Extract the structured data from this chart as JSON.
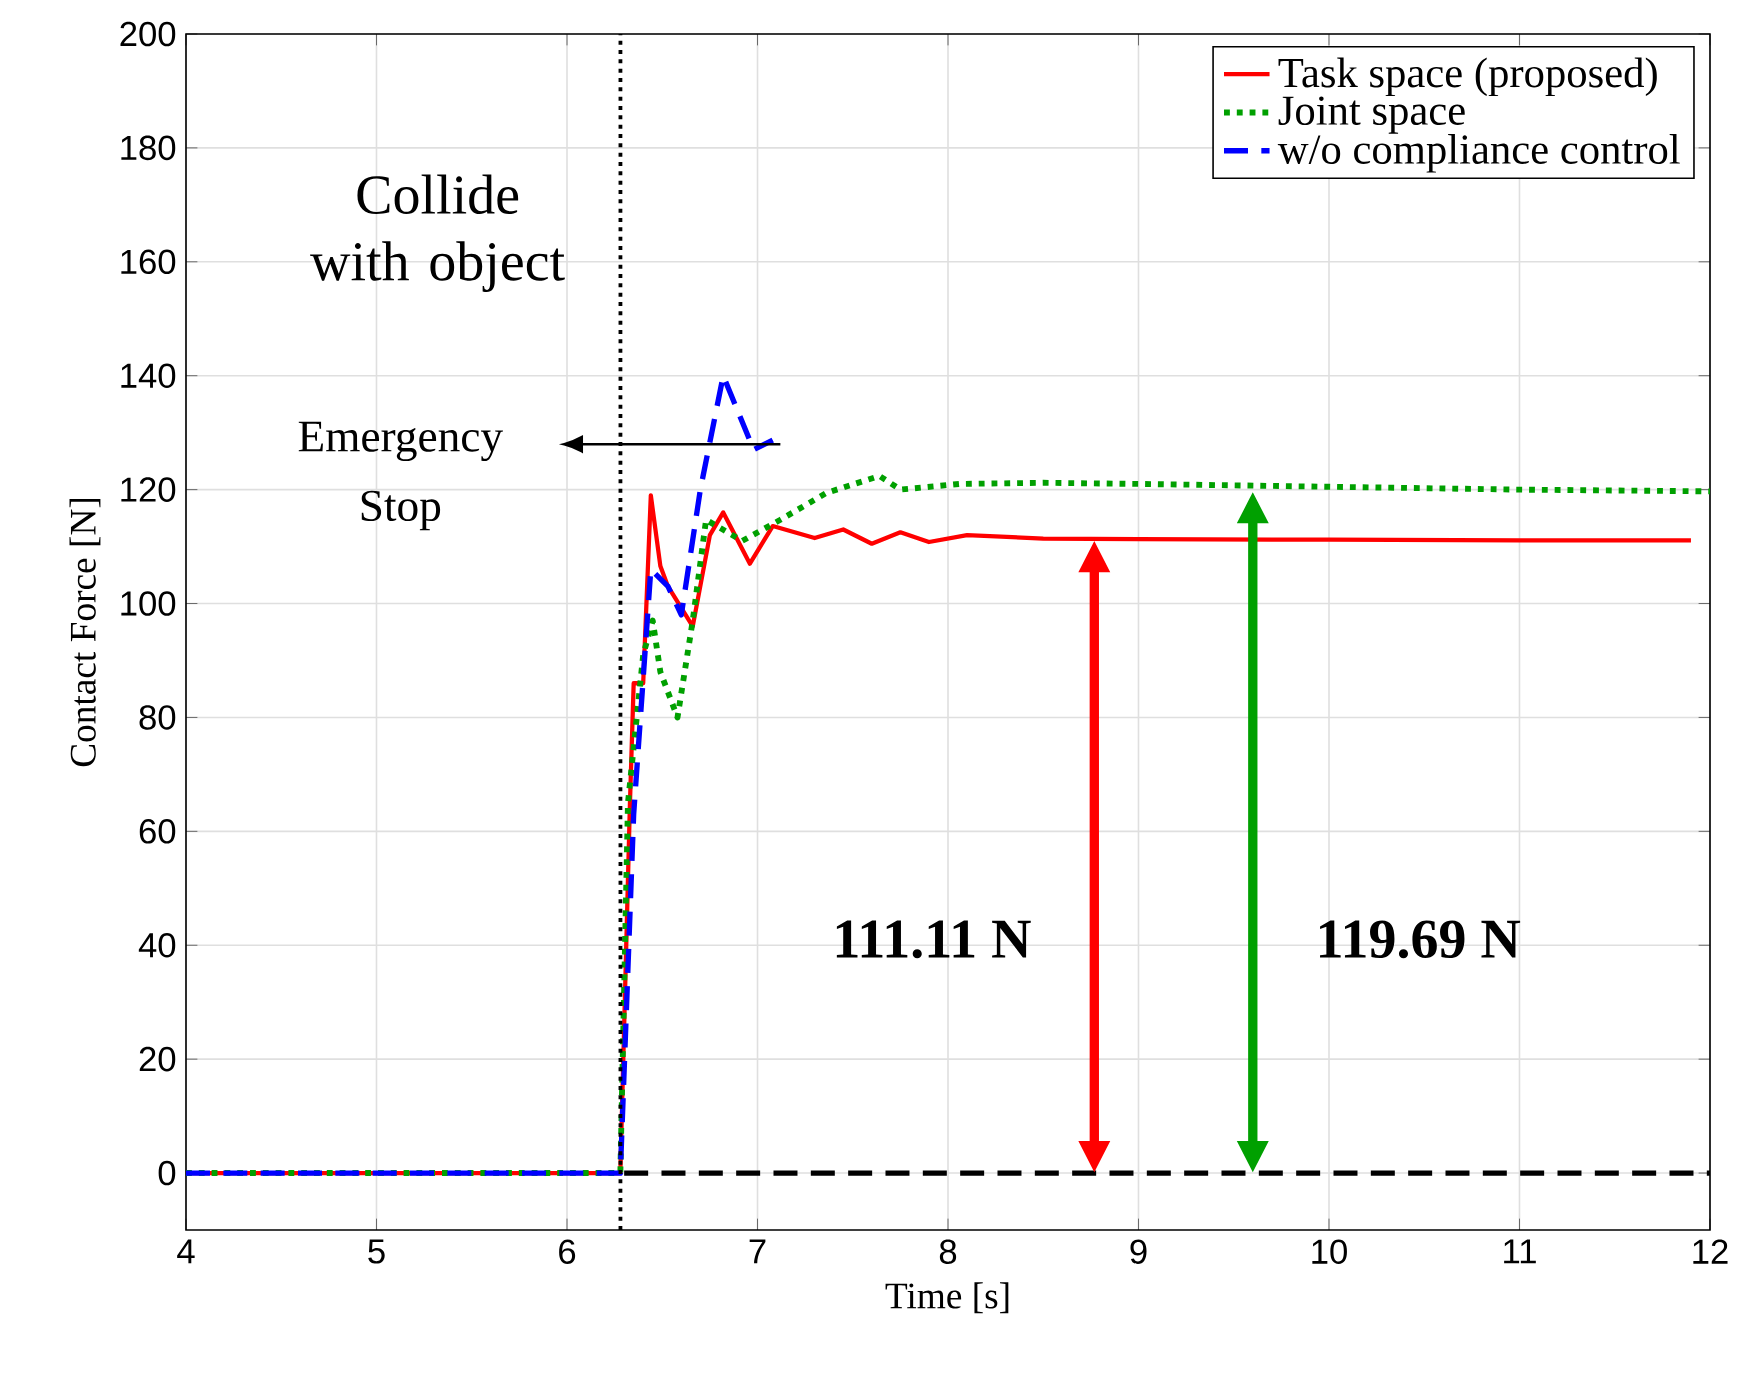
{
  "chart_data": {
    "type": "line",
    "xlabel": "Time [s]",
    "ylabel": "Contact Force [N]",
    "xlim": [
      4,
      12
    ],
    "ylim": [
      -10,
      200
    ],
    "xticks": [
      4,
      5,
      6,
      7,
      8,
      9,
      10,
      11,
      12
    ],
    "yticks": [
      0,
      20,
      40,
      60,
      80,
      100,
      120,
      140,
      160,
      180,
      200
    ],
    "grid": true,
    "legend": "top right",
    "series": [
      {
        "name": "Task space (proposed)",
        "color": "#ff0000",
        "line_style": "solid",
        "x": [
          4,
          6.28,
          6.33,
          6.35,
          6.4,
          6.44,
          6.49,
          6.53,
          6.66,
          6.75,
          6.82,
          6.96,
          7.08,
          7.3,
          7.45,
          7.6,
          7.75,
          7.9,
          8.1,
          8.5,
          9,
          10,
          11,
          11.9
        ],
        "values": [
          0,
          0,
          64.5,
          86,
          86,
          119,
          106.6,
          103,
          96,
          112,
          116,
          107,
          113.6,
          111.5,
          113,
          110.5,
          112.5,
          110.8,
          112,
          111.4,
          111.3,
          111.2,
          111.1,
          111.1
        ]
      },
      {
        "name": "Joint space",
        "color": "#00a000",
        "line_style": "dotted",
        "x": [
          4,
          6.28,
          6.32,
          6.4,
          6.45,
          6.49,
          6.58,
          6.66,
          6.73,
          6.92,
          7.12,
          7.36,
          7.64,
          7.75,
          8.06,
          8.5,
          9,
          10,
          11,
          12
        ],
        "values": [
          0,
          0,
          65,
          91,
          97,
          88,
          80,
          97,
          114.7,
          111,
          114.7,
          119.4,
          122.4,
          120,
          121,
          121.2,
          121,
          120.5,
          120,
          119.7
        ]
      },
      {
        "name": "w/o compliance control",
        "color": "#0000ff",
        "line_style": "dashed",
        "x": [
          4,
          6.28,
          6.35,
          6.44,
          6.53,
          6.6,
          6.7,
          6.82,
          6.98,
          7.08
        ],
        "values": [
          0,
          0,
          63,
          106,
          103,
          98,
          120,
          140,
          127,
          128.7
        ]
      },
      {
        "color": "#000000",
        "line_style": "dashed",
        "x": [
          6.3,
          12
        ],
        "values": [
          0,
          0
        ]
      }
    ],
    "ref_lines": [
      {
        "axis": "x",
        "value": 6.28,
        "label": "Collide with object",
        "color": "#000000",
        "line_style": "dotted"
      }
    ],
    "annotations": [
      "Emergency Stop",
      "111.11 N",
      "119.69 N"
    ]
  }
}
